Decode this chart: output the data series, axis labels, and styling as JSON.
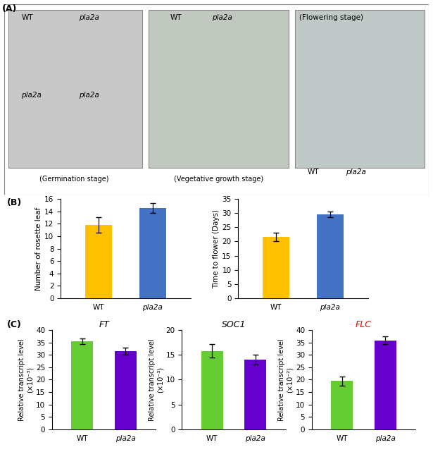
{
  "B_chart1": {
    "ylabel": "Number of rosette leaf",
    "categories": [
      "WT",
      "pla2a"
    ],
    "values": [
      11.8,
      14.5
    ],
    "errors": [
      1.2,
      0.8
    ],
    "colors": [
      "#FFC000",
      "#4472C4"
    ],
    "ylim": [
      0,
      16
    ],
    "yticks": [
      0,
      2,
      4,
      6,
      8,
      10,
      12,
      14,
      16
    ]
  },
  "B_chart2": {
    "ylabel": "Time to flower (Days)",
    "categories": [
      "WT",
      "pla2a"
    ],
    "values": [
      21.5,
      29.5
    ],
    "errors": [
      1.5,
      1.0
    ],
    "colors": [
      "#FFC000",
      "#4472C4"
    ],
    "ylim": [
      0,
      35
    ],
    "yticks": [
      0,
      5,
      10,
      15,
      20,
      25,
      30,
      35
    ]
  },
  "C_chart1": {
    "title": "FT",
    "title_color": "#000000",
    "title_style": "italic",
    "ylabel": "Relative transcript level\n(×10⁻³)",
    "categories": [
      "WT",
      "pla2a"
    ],
    "values": [
      35.5,
      31.5
    ],
    "errors": [
      1.2,
      1.5
    ],
    "colors": [
      "#66CC33",
      "#6600CC"
    ],
    "ylim": [
      0,
      40
    ],
    "yticks": [
      0,
      5,
      10,
      15,
      20,
      25,
      30,
      35,
      40
    ]
  },
  "C_chart2": {
    "title": "SOC1",
    "title_color": "#000000",
    "title_style": "italic",
    "ylabel": "Relative transcript level\n(×10⁻³)",
    "categories": [
      "WT",
      "pla2a"
    ],
    "values": [
      15.8,
      14.0
    ],
    "errors": [
      1.3,
      1.0
    ],
    "colors": [
      "#66CC33",
      "#6600CC"
    ],
    "ylim": [
      0,
      20
    ],
    "yticks": [
      0,
      5,
      10,
      15,
      20
    ]
  },
  "C_chart3": {
    "title": "FLC",
    "title_color": "#FF0000",
    "title_style": "italic",
    "ylabel": "Relative transcript level\n(×10⁻²)",
    "categories": [
      "WT",
      "pla2a"
    ],
    "values": [
      19.5,
      35.8
    ],
    "errors": [
      1.8,
      1.5
    ],
    "colors": [
      "#66CC33",
      "#6600CC"
    ],
    "ylim": [
      0,
      40
    ],
    "yticks": [
      0,
      5,
      10,
      15,
      20,
      25,
      30,
      35,
      40
    ]
  },
  "background_color": "#FFFFFF",
  "outer_border_color": "#555555"
}
